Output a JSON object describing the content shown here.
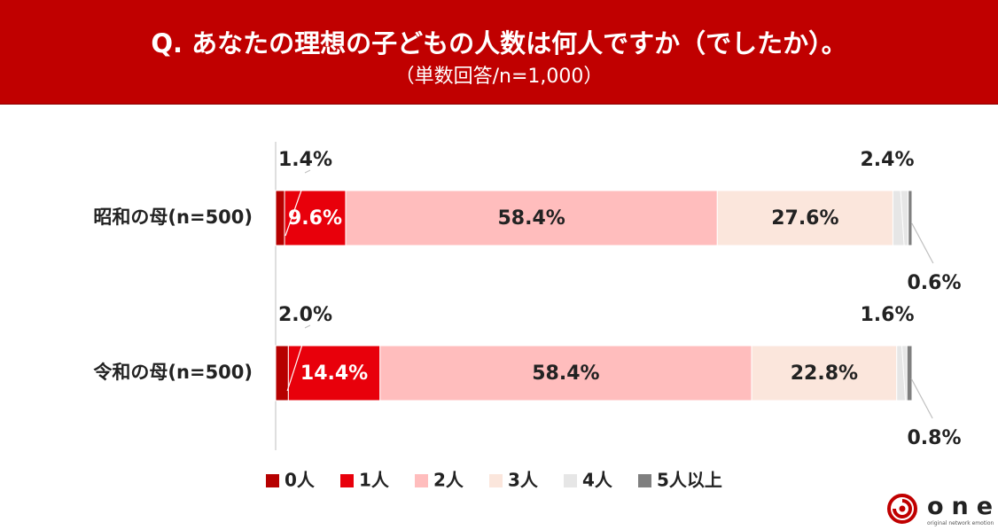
{
  "header": {
    "title": "Q. あなたの理想の子どもの人数は何人ですか（でしたか）。",
    "subtitle": "（単数回答/n=1,000）"
  },
  "colors": {
    "header_bg": "#c00000",
    "series": [
      "#b60000",
      "#e8000b",
      "#ffbdbd",
      "#fbe6dc",
      "#e6e6e6",
      "#7f7f7f"
    ]
  },
  "chart_data": {
    "type": "bar",
    "orientation": "horizontal",
    "stacked": true,
    "percent": true,
    "xlim": [
      0,
      100
    ],
    "categories": [
      "昭和の母(n=500)",
      "令和の母(n=500)"
    ],
    "series": [
      {
        "name": "0人",
        "values": [
          1.4,
          2.0
        ],
        "labels": [
          "1.4%",
          "2.0%"
        ]
      },
      {
        "name": "1人",
        "values": [
          9.6,
          14.4
        ],
        "labels": [
          "9.6%",
          "14.4%"
        ]
      },
      {
        "name": "2人",
        "values": [
          58.4,
          58.4
        ],
        "labels": [
          "58.4%",
          "58.4%"
        ]
      },
      {
        "name": "3人",
        "values": [
          27.6,
          22.8
        ],
        "labels": [
          "27.6%",
          "22.8%"
        ]
      },
      {
        "name": "4人",
        "values": [
          2.4,
          1.6
        ],
        "labels": [
          "2.4%",
          "1.6%"
        ]
      },
      {
        "name": "5人以上",
        "values": [
          0.6,
          0.8
        ],
        "labels": [
          "0.6%",
          "0.8%"
        ]
      }
    ],
    "legend_position": "bottom"
  },
  "logo": {
    "word": "one",
    "tagline": "original network emotion"
  }
}
